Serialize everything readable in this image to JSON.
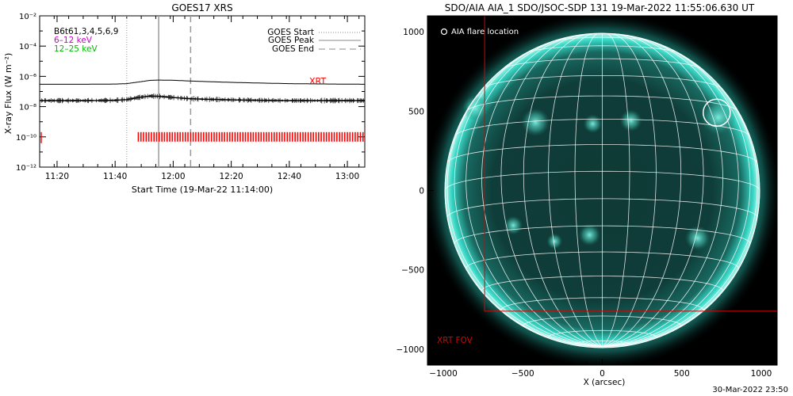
{
  "goes": {
    "title": "GOES17 XRS",
    "ylabel": "X-ray Flux (W m⁻²)",
    "xlabel": "Start Time (19-Mar-22 11:14:00)",
    "info_lines": [
      {
        "text": "B6t61,3,4,5,6,9",
        "color": "#000000"
      },
      {
        "text": "6–12 keV",
        "color": "#cc00cc"
      },
      {
        "text": "12–25 keV",
        "color": "#00bb00"
      }
    ],
    "legend": [
      {
        "label": "GOES Start",
        "style": "dotted"
      },
      {
        "label": "GOES Peak",
        "style": "solid"
      },
      {
        "label": "GOES End",
        "style": "dashed"
      }
    ],
    "xrt_label": "XRT",
    "colors": {
      "xrt": "#ff0000",
      "curve": "#000000",
      "markers": "#a0a0a0"
    }
  },
  "aia": {
    "title": "SDO/AIA AIA_1 SDO/JSOC-SDP 131 19-Mar-2022 11:55:06.630 UT",
    "xlabel": "X (arcsec)",
    "flare_label": "AIA flare location",
    "fov_label": "XRT FOV",
    "colors": {
      "disk": "#1fbfb0",
      "fov": "#dd0000"
    }
  },
  "footer": "30-Mar-2022 23:50",
  "chart_data": [
    {
      "type": "line",
      "title": "GOES17 XRS",
      "xlabel": "Start Time (19-Mar-22 11:14:00)",
      "ylabel": "X-ray Flux (W m⁻²)",
      "yscale": "log",
      "ylim": [
        1e-12,
        0.01
      ],
      "xlim": [
        "11:14",
        "13:06"
      ],
      "x_ticks": [
        "11:20",
        "11:40",
        "12:00",
        "12:20",
        "12:40",
        "13:00"
      ],
      "y_ticks": [
        "10⁻¹²",
        "10⁻¹⁰",
        "10⁻⁸",
        "10⁻⁶",
        "10⁻⁴",
        "10⁻²"
      ],
      "events": {
        "goes_start": "11:44",
        "goes_peak": "11:55",
        "goes_end": "12:06"
      },
      "series": [
        {
          "name": "long",
          "x": [
            "11:14",
            "11:20",
            "11:30",
            "11:40",
            "11:44",
            "11:48",
            "11:52",
            "11:55",
            "12:00",
            "12:05",
            "12:10",
            "12:20",
            "12:30",
            "12:40",
            "12:50",
            "13:00",
            "13:06"
          ],
          "values": [
            3e-07,
            3e-07,
            3e-07,
            3.1e-07,
            3.3e-07,
            4.2e-07,
            5.4e-07,
            5.7e-07,
            5.5e-07,
            5e-07,
            4.6e-07,
            4e-07,
            3.6e-07,
            3.3e-07,
            3.15e-07,
            3.05e-07,
            3e-07
          ]
        },
        {
          "name": "short",
          "x": [
            "11:14",
            "11:20",
            "11:30",
            "11:40",
            "11:44",
            "11:48",
            "11:52",
            "11:55",
            "12:00",
            "12:05",
            "12:10",
            "12:20",
            "12:30",
            "12:40",
            "12:50",
            "13:00",
            "13:06"
          ],
          "values": [
            2.5e-08,
            2.5e-08,
            2.5e-08,
            2.6e-08,
            2.9e-08,
            4e-08,
            5e-08,
            4.8e-08,
            4e-08,
            3.4e-08,
            3.1e-08,
            2.8e-08,
            2.6e-08,
            2.5e-08,
            2.5e-08,
            2.5e-08,
            2.5e-08
          ]
        }
      ],
      "xrt_coverage": {
        "start": "11:48",
        "end": "13:06",
        "level": 1e-10
      }
    },
    {
      "type": "scatter",
      "title": "SDO/AIA AIA_1 SDO/JSOC-SDP 131 19-Mar-2022 11:55:06.630 UT",
      "xlabel": "X (arcsec)",
      "xlim": [
        -1100,
        1100
      ],
      "ylim": [
        -1100,
        1100
      ],
      "x_ticks": [
        -1000,
        -500,
        0,
        500,
        1000
      ],
      "y_ticks": [
        -1000,
        -500,
        0,
        500,
        1000
      ],
      "solar_radius": 990,
      "flare_location": {
        "x": 720,
        "y": 490,
        "r": 85
      },
      "xrt_fov": {
        "x0": -740,
        "x1": 1100,
        "y0": -760,
        "y1": 1100
      }
    }
  ]
}
